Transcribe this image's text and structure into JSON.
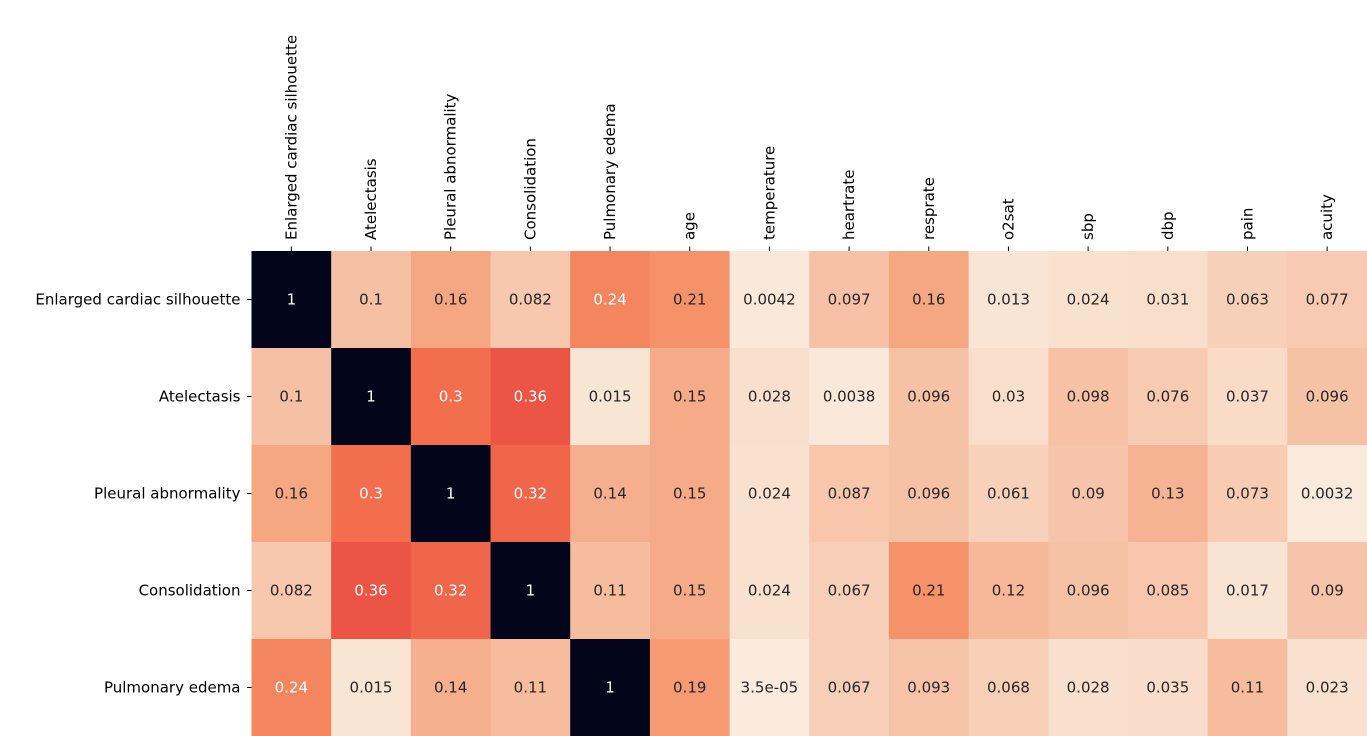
{
  "chart_data": {
    "type": "heatmap",
    "title": "",
    "xlabel": "",
    "ylabel": "",
    "colormap": "rocket_r",
    "vmin": 0,
    "vmax": 1,
    "colorbar": false,
    "x_labels": [
      "Enlarged cardiac silhouette",
      "Atelectasis",
      "Pleural abnormality",
      "Consolidation",
      "Pulmonary edema",
      "age",
      "temperature",
      "heartrate",
      "resprate",
      "o2sat",
      "sbp",
      "dbp",
      "pain",
      "acuity"
    ],
    "y_labels": [
      "Enlarged cardiac silhouette",
      "Atelectasis",
      "Pleural abnormality",
      "Consolidation",
      "Pulmonary edema"
    ],
    "values": [
      [
        1,
        0.1,
        0.16,
        0.082,
        0.24,
        0.21,
        0.0042,
        0.097,
        0.16,
        0.013,
        0.024,
        0.031,
        0.063,
        0.077
      ],
      [
        0.1,
        1,
        0.3,
        0.36,
        0.015,
        0.15,
        0.028,
        0.0038,
        0.096,
        0.03,
        0.098,
        0.076,
        0.037,
        0.096
      ],
      [
        0.16,
        0.3,
        1,
        0.32,
        0.14,
        0.15,
        0.024,
        0.087,
        0.096,
        0.061,
        0.09,
        0.13,
        0.073,
        0.0032
      ],
      [
        0.082,
        0.36,
        0.32,
        1,
        0.11,
        0.15,
        0.024,
        0.067,
        0.21,
        0.12,
        0.096,
        0.085,
        0.017,
        0.09
      ],
      [
        0.24,
        0.015,
        0.14,
        0.11,
        1,
        0.19,
        3.5e-05,
        0.067,
        0.093,
        0.068,
        0.028,
        0.035,
        0.11,
        0.023
      ]
    ],
    "annotations": [
      [
        "1",
        "0.1",
        "0.16",
        "0.082",
        "0.24",
        "0.21",
        "0.0042",
        "0.097",
        "0.16",
        "0.013",
        "0.024",
        "0.031",
        "0.063",
        "0.077"
      ],
      [
        "0.1",
        "1",
        "0.3",
        "0.36",
        "0.015",
        "0.15",
        "0.028",
        "0.0038",
        "0.096",
        "0.03",
        "0.098",
        "0.076",
        "0.037",
        "0.096"
      ],
      [
        "0.16",
        "0.3",
        "1",
        "0.32",
        "0.14",
        "0.15",
        "0.024",
        "0.087",
        "0.096",
        "0.061",
        "0.09",
        "0.13",
        "0.073",
        "0.0032"
      ],
      [
        "0.082",
        "0.36",
        "0.32",
        "1",
        "0.11",
        "0.15",
        "0.024",
        "0.067",
        "0.21",
        "0.12",
        "0.096",
        "0.085",
        "0.017",
        "0.09"
      ],
      [
        "0.24",
        "0.015",
        "0.14",
        "0.11",
        "1",
        "0.19",
        "3.5e-05",
        "0.067",
        "0.093",
        "0.068",
        "0.028",
        "0.035",
        "0.11",
        "0.023"
      ]
    ]
  }
}
